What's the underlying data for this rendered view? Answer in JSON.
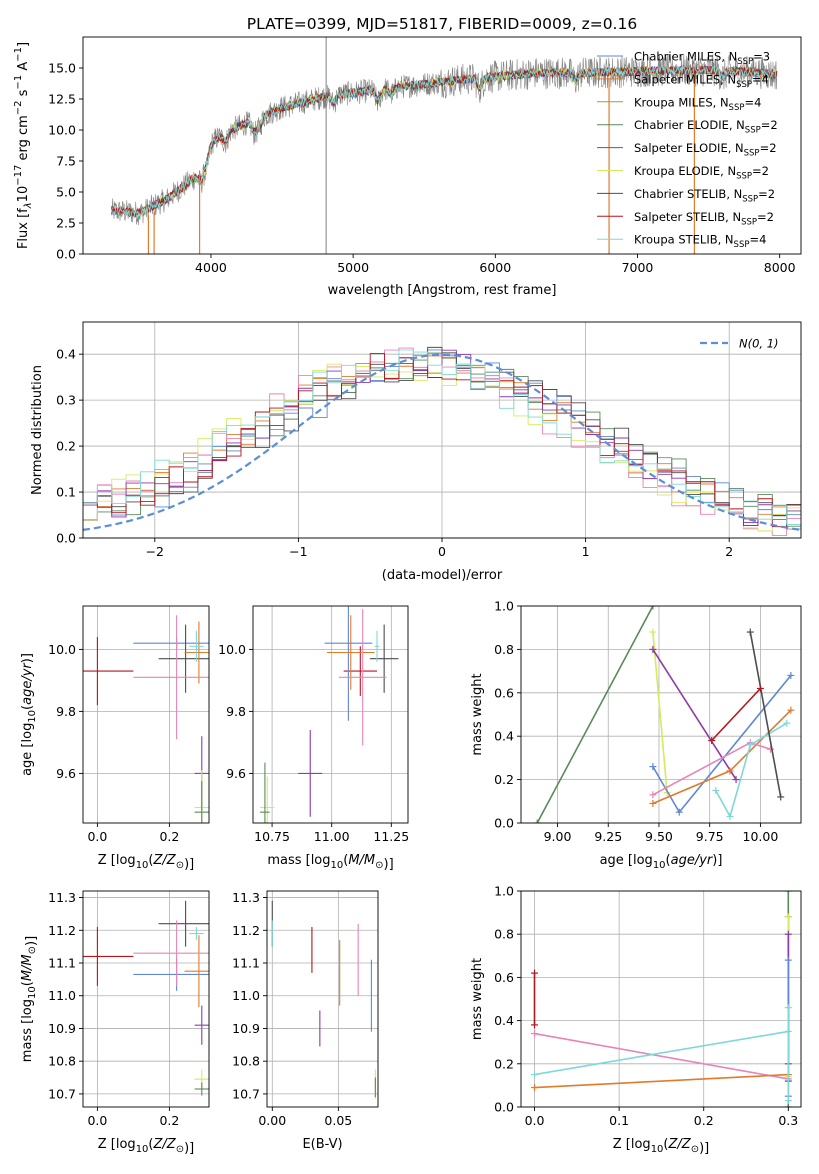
{
  "figure_title": "PLATE=0399, MJD=51817, FIBERID=0009, z=0.16",
  "colors": {
    "Chabrier_MILES": "#5f86d8",
    "Salpeter_MILES": "#e07b2b",
    "Kroupa_MILES": "#a89a3c",
    "Chabrier_ELODIE": "#5a8a5a",
    "Salpeter_ELODIE": "#8e3aaa",
    "Kroupa_ELODIE": "#d6ea5c",
    "Chabrier_STELIB": "#4d4d4d",
    "Salpeter_STELIB": "#b5161b",
    "Kroupa_STELIB": "#7fd8d8",
    "pink": "#e884b6",
    "normal_curve": "#5b8fd6",
    "data_gray": "#808080"
  },
  "legend_top": [
    {
      "key": "Chabrier_MILES",
      "label": "Chabrier MILES, N",
      "sub": "SSP",
      "tail": "=3"
    },
    {
      "key": "Salpeter_MILES",
      "label": "Salpeter MILES, N",
      "sub": "SSP",
      "tail": "=4"
    },
    {
      "key": "Kroupa_MILES",
      "label": "Kroupa MILES, N",
      "sub": "SSP",
      "tail": "=4"
    },
    {
      "key": "Chabrier_ELODIE",
      "label": "Chabrier ELODIE, N",
      "sub": "SSP",
      "tail": "=2"
    },
    {
      "key": "Salpeter_ELODIE",
      "label": "Salpeter ELODIE, N",
      "sub": "SSP",
      "tail": "=2"
    },
    {
      "key": "Kroupa_ELODIE",
      "label": "Kroupa ELODIE, N",
      "sub": "SSP",
      "tail": "=2"
    },
    {
      "key": "Chabrier_STELIB",
      "label": "Chabrier STELIB, N",
      "sub": "SSP",
      "tail": "=2"
    },
    {
      "key": "Salpeter_STELIB",
      "label": "Salpeter STELIB, N",
      "sub": "SSP",
      "tail": "=2"
    },
    {
      "key": "Kroupa_STELIB",
      "label": "Kroupa STELIB, N",
      "sub": "SSP",
      "tail": "=4"
    }
  ],
  "chart_data": [
    {
      "id": "spectrum",
      "type": "line",
      "xlabel": "wavelength [Angstrom, rest frame]",
      "ylabel": "Flux [f",
      "ylabel_parts": [
        "Flux [f",
        "λ",
        "10",
        "−17",
        " erg cm",
        "−2",
        " s",
        "−1",
        " A",
        "−1",
        "]"
      ],
      "xlim": [
        3100,
        8150
      ],
      "ylim": [
        0,
        17.5
      ],
      "xticks": [
        4000,
        5000,
        6000,
        7000,
        8000
      ],
      "yticks": [
        0.0,
        2.5,
        5.0,
        7.5,
        10.0,
        12.5,
        15.0
      ],
      "ytick_labels": [
        "0.0",
        "2.5",
        "5.0",
        "7.5",
        "10.0",
        "12.5",
        "15.0"
      ],
      "continuum": {
        "x": [
          3300,
          3500,
          3700,
          3900,
          3950,
          4100,
          4300,
          4500,
          4800,
          5000,
          5200,
          5500,
          5800,
          6000,
          6300,
          6600,
          6900,
          7200,
          7500,
          7800,
          7950
        ],
        "y": [
          3.5,
          3.3,
          4.5,
          6.3,
          8.6,
          9.8,
          10.8,
          11.8,
          12.7,
          13.0,
          13.3,
          13.7,
          14.1,
          14.3,
          14.6,
          14.6,
          14.7,
          14.8,
          14.8,
          14.7,
          14.5
        ]
      },
      "vertical_line_x": 4810
    },
    {
      "id": "residuals",
      "type": "histogram",
      "xlabel": "(data-model)/error",
      "ylabel": "Normed distribution",
      "xlim": [
        -2.5,
        2.5
      ],
      "ylim": [
        0,
        0.47
      ],
      "xticks": [
        -2,
        -1,
        0,
        1,
        2
      ],
      "xtick_labels": [
        "−2",
        "−1",
        "0",
        "1",
        "2"
      ],
      "yticks": [
        0.0,
        0.1,
        0.2,
        0.3,
        0.4
      ],
      "ytick_labels": [
        "0.0",
        "0.1",
        "0.2",
        "0.3",
        "0.4"
      ],
      "bin_width": 0.1,
      "legend_label": "N(0, 1)",
      "normal": {
        "mu": 0,
        "sigma": 1
      }
    },
    {
      "id": "age_vs_Z",
      "type": "scatter",
      "xlabel": "Z [log10(Z/Z⊙)]",
      "ylabel": "age [log10(age/yr)]",
      "xlim": [
        -0.04,
        0.31
      ],
      "ylim": [
        9.44,
        10.14
      ],
      "xticks": [
        0.0,
        0.2
      ],
      "xtick_labels": [
        "0.0",
        "0.2"
      ],
      "yticks": [
        9.6,
        9.8,
        10.0
      ],
      "ytick_labels": [
        "9.6",
        "9.8",
        "10.0"
      ],
      "points": [
        {
          "c": "Salpeter_STELIB",
          "x": 0.0,
          "y": 9.93,
          "xe": 0.1,
          "ye": 0.11
        },
        {
          "c": "Chabrier_MILES",
          "x": 0.22,
          "y": 10.02,
          "xe": 0.12,
          "ye": 0.02
        },
        {
          "c": "Chabrier_STELIB",
          "x": 0.245,
          "y": 9.97,
          "xe": 0.075,
          "ye": 0.11
        },
        {
          "c": "Salpeter_MILES",
          "x": 0.282,
          "y": 9.99,
          "xe": 0.04,
          "ye": 0.1
        },
        {
          "c": "Kroupa_STELIB",
          "x": 0.275,
          "y": 10.01,
          "xe": 0.02,
          "ye": 0.05
        },
        {
          "c": "pink",
          "x": 0.22,
          "y": 9.91,
          "xe": 0.12,
          "ye": 0.2
        },
        {
          "c": "Salpeter_ELODIE",
          "x": 0.29,
          "y": 9.6,
          "xe": 0.02,
          "ye": 0.12
        },
        {
          "c": "Kroupa_ELODIE",
          "x": 0.29,
          "y": 9.49,
          "xe": 0.02,
          "ye": 0.12
        },
        {
          "c": "Chabrier_ELODIE",
          "x": 0.29,
          "y": 9.475,
          "xe": 0.02,
          "ye": 0.1
        }
      ]
    },
    {
      "id": "age_vs_mass",
      "type": "scatter",
      "xlabel": "mass [log10(M/M⊙)]",
      "ylabel": "",
      "xlim": [
        10.67,
        11.32
      ],
      "ylim": [
        9.44,
        10.14
      ],
      "xticks": [
        10.75,
        11.0,
        11.25
      ],
      "xtick_labels": [
        "10.75",
        "11.00",
        "11.25"
      ],
      "yticks": [
        9.6,
        9.8,
        10.0
      ],
      "ytick_labels": [
        "9.6",
        "9.8",
        "10.0"
      ],
      "points": [
        {
          "c": "Salpeter_STELIB",
          "x": 11.12,
          "y": 9.93,
          "xe": 0.07,
          "ye": 0.08
        },
        {
          "c": "Chabrier_MILES",
          "x": 11.07,
          "y": 10.02,
          "xe": 0.1,
          "ye": 0.25
        },
        {
          "c": "Chabrier_STELIB",
          "x": 11.22,
          "y": 9.97,
          "xe": 0.06,
          "ye": 0.11
        },
        {
          "c": "Salpeter_MILES",
          "x": 11.08,
          "y": 9.99,
          "xe": 0.1,
          "ye": 0.12
        },
        {
          "c": "Kroupa_STELIB",
          "x": 11.19,
          "y": 10.01,
          "xe": 0.01,
          "ye": 0.05
        },
        {
          "c": "pink",
          "x": 11.13,
          "y": 9.91,
          "xe": 0.1,
          "ye": 0.22
        },
        {
          "c": "Salpeter_ELODIE",
          "x": 10.91,
          "y": 9.6,
          "xe": 0.05,
          "ye": 0.14
        },
        {
          "c": "Kroupa_ELODIE",
          "x": 10.73,
          "y": 9.49,
          "xe": 0.03,
          "ye": 0.1
        },
        {
          "c": "Chabrier_ELODIE",
          "x": 10.72,
          "y": 9.475,
          "xe": 0.02,
          "ye": 0.16
        }
      ]
    },
    {
      "id": "mass_weight_vs_age",
      "type": "line",
      "xlabel": "age [log10(age/yr)]",
      "ylabel": "mass weight",
      "xlim": [
        8.82,
        10.2
      ],
      "ylim": [
        0,
        1
      ],
      "xticks": [
        9.0,
        9.25,
        9.5,
        9.75,
        10.0
      ],
      "xtick_labels": [
        "9.00",
        "9.25",
        "9.50",
        "9.75",
        "10.00"
      ],
      "yticks": [
        0.0,
        0.2,
        0.4,
        0.6,
        0.8,
        1.0
      ],
      "ytick_labels": [
        "0.0",
        "0.2",
        "0.4",
        "0.6",
        "0.8",
        "1.0"
      ],
      "series": [
        {
          "c": "Chabrier_ELODIE",
          "x": [
            8.9,
            9.47
          ],
          "y": [
            0.0,
            1.0
          ]
        },
        {
          "c": "Kroupa_ELODIE",
          "x": [
            9.47,
            9.54
          ],
          "y": [
            0.88,
            0.14
          ]
        },
        {
          "c": "Salpeter_ELODIE",
          "x": [
            9.47,
            9.88
          ],
          "y": [
            0.8,
            0.2
          ]
        },
        {
          "c": "Chabrier_MILES",
          "x": [
            9.47,
            9.6,
            10.15
          ],
          "y": [
            0.26,
            0.05,
            0.68
          ]
        },
        {
          "c": "Salpeter_MILES",
          "x": [
            9.47,
            9.85,
            10.15
          ],
          "y": [
            0.09,
            0.24,
            0.52
          ]
        },
        {
          "c": "pink",
          "x": [
            9.47,
            9.95,
            10.05
          ],
          "y": [
            0.13,
            0.37,
            0.34
          ]
        },
        {
          "c": "Kroupa_STELIB",
          "x": [
            9.78,
            9.85,
            9.95,
            10.13
          ],
          "y": [
            0.15,
            0.03,
            0.36,
            0.46
          ]
        },
        {
          "c": "Chabrier_STELIB",
          "x": [
            9.95,
            10.1
          ],
          "y": [
            0.88,
            0.12
          ]
        },
        {
          "c": "Salpeter_STELIB",
          "x": [
            9.76,
            10.0
          ],
          "y": [
            0.38,
            0.62
          ]
        }
      ]
    },
    {
      "id": "mass_vs_Z",
      "type": "scatter",
      "xlabel": "Z [log10(Z/Z⊙)]",
      "ylabel": "mass [log10(M/M⊙)]",
      "xlim": [
        -0.04,
        0.31
      ],
      "ylim": [
        10.66,
        11.32
      ],
      "xticks": [
        0.0,
        0.2
      ],
      "xtick_labels": [
        "0.0",
        "0.2"
      ],
      "yticks": [
        10.7,
        10.8,
        10.9,
        11.0,
        11.1,
        11.2,
        11.3
      ],
      "ytick_labels": [
        "10.7",
        "10.8",
        "10.9",
        "11.0",
        "11.1",
        "11.2",
        "11.3"
      ],
      "points": [
        {
          "c": "Salpeter_STELIB",
          "x": 0.0,
          "y": 11.12,
          "xe": 0.1,
          "ye": 0.09
        },
        {
          "c": "Chabrier_MILES",
          "x": 0.22,
          "y": 11.065,
          "xe": 0.12,
          "ye": 0.05
        },
        {
          "c": "Chabrier_STELIB",
          "x": 0.245,
          "y": 11.22,
          "xe": 0.075,
          "ye": 0.07
        },
        {
          "c": "Salpeter_MILES",
          "x": 0.282,
          "y": 11.075,
          "xe": 0.04,
          "ye": 0.11
        },
        {
          "c": "Kroupa_STELIB",
          "x": 0.275,
          "y": 11.19,
          "xe": 0.02,
          "ye": 0.02
        },
        {
          "c": "pink",
          "x": 0.22,
          "y": 11.13,
          "xe": 0.12,
          "ye": 0.1
        },
        {
          "c": "Salpeter_ELODIE",
          "x": 0.29,
          "y": 10.91,
          "xe": 0.02,
          "ye": 0.06
        },
        {
          "c": "Kroupa_ELODIE",
          "x": 0.29,
          "y": 10.745,
          "xe": 0.02,
          "ye": 0.03
        },
        {
          "c": "Chabrier_ELODIE",
          "x": 0.29,
          "y": 10.715,
          "xe": 0.02,
          "ye": 0.02
        }
      ]
    },
    {
      "id": "mass_vs_EBV",
      "type": "scatter",
      "xlabel": "E(B-V)",
      "ylabel": "",
      "xlim": [
        -0.004,
        0.08
      ],
      "ylim": [
        10.66,
        11.32
      ],
      "xticks": [
        0.0,
        0.05
      ],
      "xtick_labels": [
        "0.00",
        "0.05"
      ],
      "yticks": [
        10.7,
        10.8,
        10.9,
        11.0,
        11.1,
        11.2,
        11.3
      ],
      "ytick_labels": [
        "10.7",
        "10.8",
        "10.9",
        "11.0",
        "11.1",
        "11.2",
        "11.3"
      ],
      "points": [
        {
          "c": "Chabrier_STELIB",
          "x": 0.0,
          "y": 11.22,
          "xe": 0.0,
          "ye": 0.07
        },
        {
          "c": "Kroupa_STELIB",
          "x": 0.0,
          "y": 11.19,
          "xe": 0.0,
          "ye": 0.04
        },
        {
          "c": "Salpeter_STELIB",
          "x": 0.03,
          "y": 11.14,
          "xe": 0.0,
          "ye": 0.07
        },
        {
          "c": "Salpeter_ELODIE",
          "x": 0.036,
          "y": 10.9,
          "xe": 0.0,
          "ye": 0.055
        },
        {
          "c": "Salpeter_MILES",
          "x": 0.051,
          "y": 11.07,
          "xe": 0.0,
          "ye": 0.1
        },
        {
          "c": "pink",
          "x": 0.065,
          "y": 11.11,
          "xe": 0.0,
          "ye": 0.11
        },
        {
          "c": "Chabrier_MILES",
          "x": 0.075,
          "y": 11.0,
          "xe": 0.0,
          "ye": 0.11
        },
        {
          "c": "Kroupa_ELODIE",
          "x": 0.078,
          "y": 10.73,
          "xe": 0.0,
          "ye": 0.045
        },
        {
          "c": "Chabrier_ELODIE",
          "x": 0.078,
          "y": 10.72,
          "xe": 0.0,
          "ye": 0.03
        }
      ]
    },
    {
      "id": "mass_weight_vs_Z",
      "type": "line",
      "xlabel": "Z [log10(Z/Z⊙)]",
      "ylabel": "mass weight",
      "xlim": [
        -0.016,
        0.315
      ],
      "ylim": [
        0,
        1
      ],
      "xticks": [
        0.0,
        0.1,
        0.2,
        0.3
      ],
      "xtick_labels": [
        "0.0",
        "0.1",
        "0.2",
        "0.3"
      ],
      "yticks": [
        0.0,
        0.2,
        0.4,
        0.6,
        0.8,
        1.0
      ],
      "ytick_labels": [
        "0.0",
        "0.2",
        "0.4",
        "0.6",
        "0.8",
        "1.0"
      ],
      "series": [
        {
          "c": "Salpeter_STELIB",
          "x": [
            0.0,
            0.0
          ],
          "y": [
            0.38,
            0.62
          ]
        },
        {
          "c": "pink",
          "x": [
            0.0,
            0.3
          ],
          "y": [
            0.34,
            0.13
          ]
        },
        {
          "c": "Salpeter_MILES",
          "x": [
            0.0,
            0.3
          ],
          "y": [
            0.09,
            0.15
          ]
        },
        {
          "c": "Kroupa_STELIB",
          "x": [
            0.0,
            0.3
          ],
          "y": [
            0.15,
            0.35
          ]
        },
        {
          "c": "Chabrier_ELODIE",
          "x": [
            0.3,
            0.3
          ],
          "y": [
            0.0,
            1.0
          ]
        },
        {
          "c": "Chabrier_STELIB",
          "x": [
            0.3,
            0.3
          ],
          "y": [
            0.12,
            0.88
          ]
        },
        {
          "c": "Kroupa_ELODIE",
          "x": [
            0.3,
            0.3
          ],
          "y": [
            0.14,
            0.88
          ]
        },
        {
          "c": "Salpeter_ELODIE",
          "x": [
            0.3,
            0.3
          ],
          "y": [
            0.2,
            0.8
          ]
        },
        {
          "c": "Chabrier_MILES",
          "x": [
            0.3,
            0.3
          ],
          "y": [
            0.05,
            0.68
          ]
        },
        {
          "c": "Kroupa_STELIB",
          "x": [
            0.3,
            0.3
          ],
          "y": [
            0.03,
            0.46
          ]
        }
      ]
    }
  ]
}
